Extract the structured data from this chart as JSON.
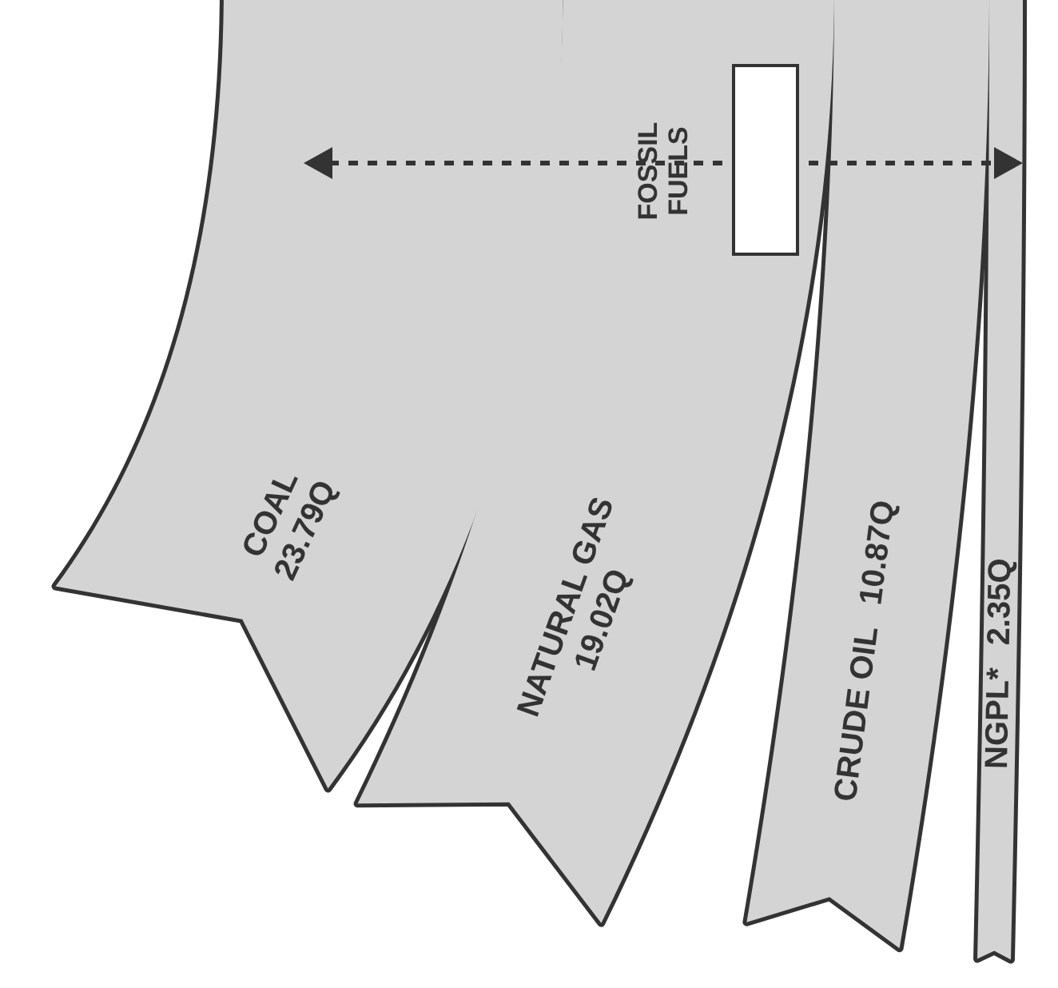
{
  "chart_data": {
    "type": "other",
    "title": "FOSSIL FUELS",
    "categories": [
      "COAL",
      "NATURAL GAS",
      "CRUDE OIL",
      "NGPL*"
    ],
    "values": [
      23.79,
      19.02,
      10.87,
      2.35
    ],
    "value_labels": [
      "23.79Q",
      "19.02Q",
      "10.87Q",
      "2.35Q"
    ],
    "colors": [
      "#d4d4d4",
      "#d4d4d4",
      "#d4d4d4",
      "#d4d4d4"
    ]
  }
}
